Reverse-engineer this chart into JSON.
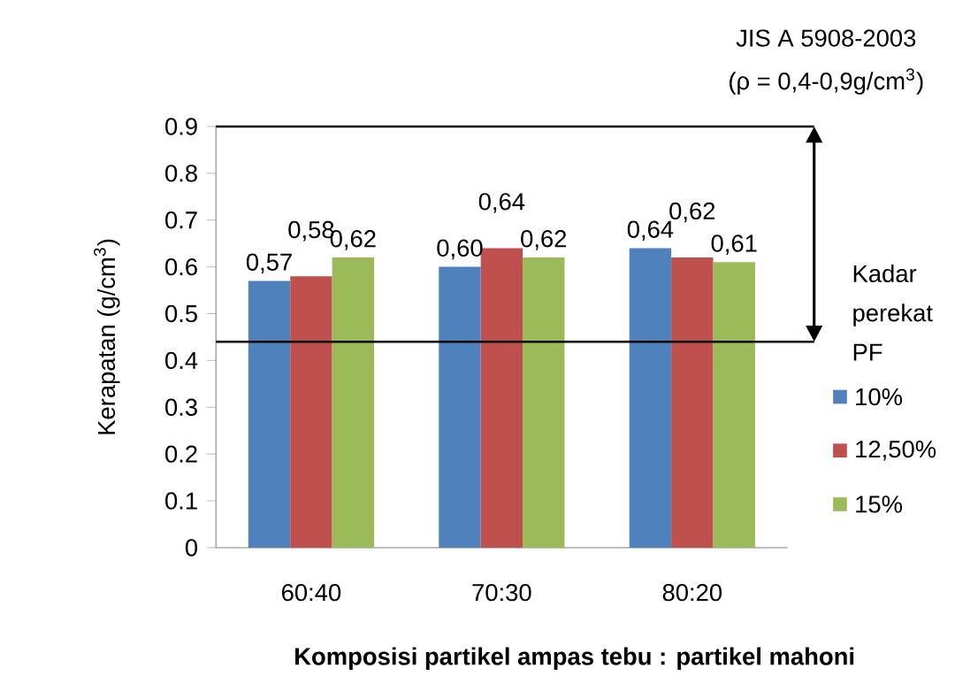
{
  "chart_data": {
    "type": "bar",
    "categories": [
      "60:40",
      "70:30",
      "80:20"
    ],
    "series": [
      {
        "name": "10%",
        "color": "#4f81bd",
        "values": [
          0.57,
          0.6,
          0.64
        ],
        "value_labels": [
          "0,57",
          "0,60",
          "0,64"
        ]
      },
      {
        "name": "12,50%",
        "color": "#c0504d",
        "values": [
          0.58,
          0.64,
          0.62
        ],
        "value_labels": [
          "0,58",
          "0,64",
          "0,62"
        ]
      },
      {
        "name": "15%",
        "color": "#9bbb59",
        "values": [
          0.62,
          0.62,
          0.61
        ],
        "value_labels": [
          "0,62",
          "0,62",
          "0,61"
        ]
      }
    ],
    "ylim": [
      0,
      0.9
    ],
    "yticks": [
      0,
      0.1,
      0.2,
      0.3,
      0.4,
      0.5,
      0.6,
      0.7,
      0.8,
      0.9
    ],
    "ylabel": "Kerapatan (g/cm$^{3}$)",
    "xlabel": "**Komposisi partikel ampas tebu : partikel mahoni**",
    "legend_title": "Kadar perekat PF",
    "legend": "right",
    "ref_lines": [
      {
        "axis": "y",
        "value": 0.9
      },
      {
        "axis": "y",
        "value": 0.44
      }
    ],
    "annotations": [
      "JIS A 5908-2003",
      "(ρ = 0,4-0,9g/cm$^{3}$)"
    ]
  }
}
